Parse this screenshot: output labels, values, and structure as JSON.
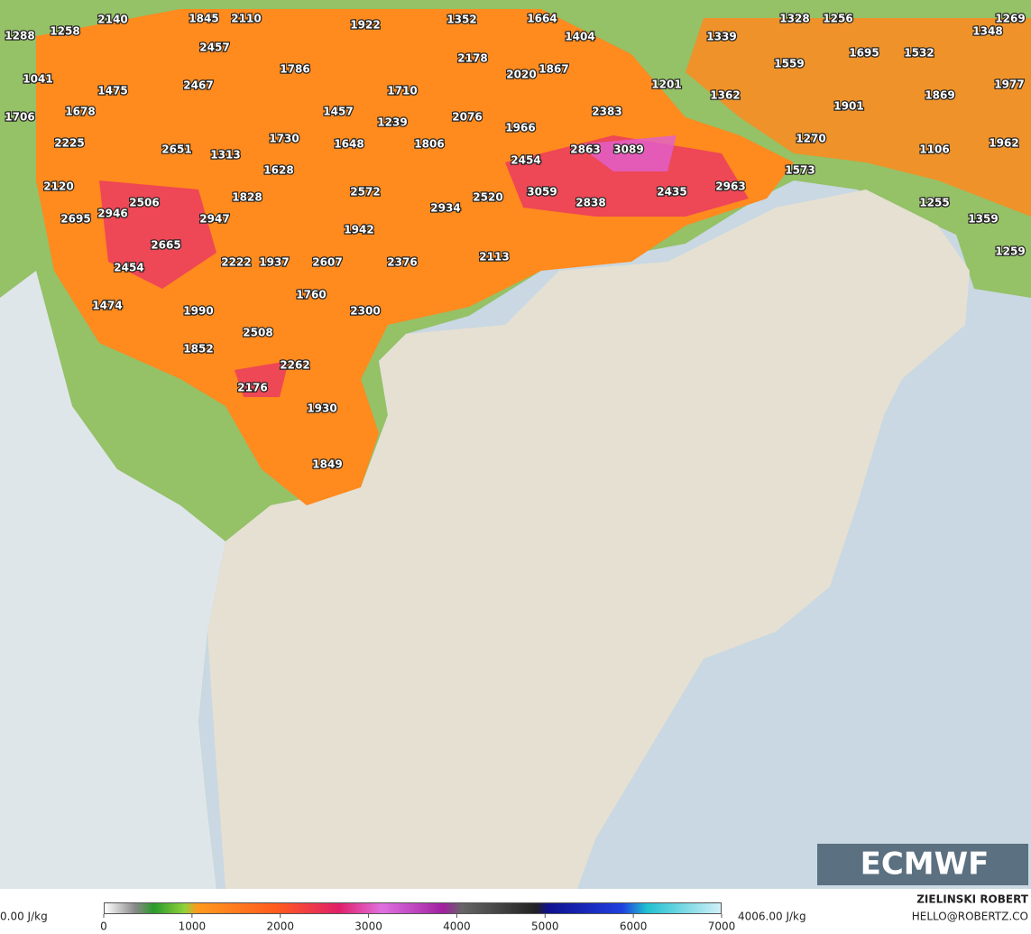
{
  "map": {
    "labels": [
      1288,
      1258,
      2140,
      1845,
      2110,
      1922,
      1352,
      1664,
      1328,
      1256,
      1269,
      1348,
      2457,
      1404,
      1339,
      1041,
      1786,
      2178,
      1695,
      1532,
      1559,
      1475,
      2467,
      1710,
      2020,
      1867,
      1201,
      1362,
      1977,
      1869,
      1678,
      1457,
      1239,
      2076,
      1706,
      2383,
      1901,
      1966,
      2225,
      2651,
      1313,
      1730,
      1648,
      1806,
      2863,
      3089,
      1270,
      1106,
      1962,
      2454,
      1628,
      1573,
      2120,
      1828,
      2572,
      3059,
      2838,
      2435,
      2963,
      2506,
      2946,
      2947,
      2934,
      2520,
      1255,
      1359,
      2695,
      1942,
      2665,
      2454,
      2222,
      1937,
      2607,
      2376,
      2113,
      1259,
      1760,
      1474,
      1990,
      2300,
      2508,
      1852,
      2262,
      2176,
      1930,
      1849
    ]
  },
  "logo": "ECMWF",
  "legend": {
    "min_label": "0.00 J/kg",
    "max_label": "4006.00 J/kg",
    "ticks": [
      0,
      1000,
      2000,
      3000,
      4000,
      5000,
      6000,
      7000
    ]
  },
  "credit": {
    "author": "ZIELINSKI ROBERT",
    "contact": "HELLO@ROBERTZ.CO"
  }
}
